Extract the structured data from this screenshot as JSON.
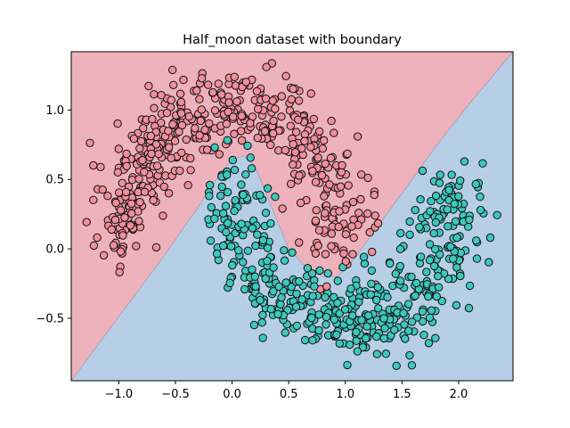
{
  "chart_data": {
    "type": "scatter",
    "title": "Half_moon dataset with boundary",
    "xlabel": "",
    "ylabel": "",
    "xlim": [
      -1.42,
      2.48
    ],
    "ylim": [
      -0.95,
      1.42
    ],
    "xticks": [
      -1.0,
      -0.5,
      0.0,
      0.5,
      1.0,
      1.5,
      2.0
    ],
    "yticks": [
      -0.5,
      0.0,
      0.5,
      1.0
    ],
    "xtick_labels": [
      "−1.0",
      "−0.5",
      "0.0",
      "0.5",
      "1.0",
      "1.5",
      "2.0"
    ],
    "ytick_labels": [
      "−0.5",
      "0.0",
      "0.5",
      "1.0"
    ],
    "grid": false,
    "legend": "none",
    "colors": {
      "class_0_region": "#edb2bb",
      "class_1_region": "#b6cfe6",
      "class_0_points": "#f08f9a",
      "class_1_points": "#3ec7bd",
      "edge": "#111111"
    },
    "series": [
      {
        "values_generator": "upper half-moon: x = cos(t), y = sin(t), t in [0, pi], noise ~0.15",
        "points": 500
      },
      {
        "values_generator": "lower half-moon: x = 1 - cos(t), y = 0.5 - sin(t), t in [0, pi], noise ~0.15",
        "points": 500
      }
    ],
    "decision_boundary": {
      "x": [
        -1.42,
        -0.6,
        -0.3,
        -0.1,
        0.0,
        0.1,
        0.2,
        0.35,
        0.5,
        0.65,
        0.8,
        0.92,
        1.0,
        1.1,
        1.25,
        1.5,
        1.8,
        2.1,
        2.48
      ],
      "y": [
        -0.95,
        -0.05,
        0.3,
        0.55,
        0.64,
        0.67,
        0.6,
        0.3,
        0.0,
        -0.13,
        -0.2,
        -0.2,
        -0.15,
        -0.05,
        0.12,
        0.4,
        0.74,
        1.05,
        1.42
      ]
    }
  }
}
